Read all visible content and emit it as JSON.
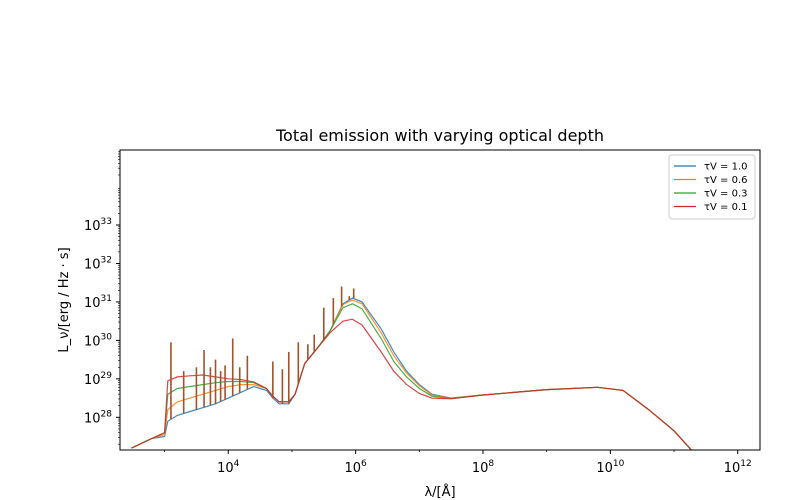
{
  "chart_data": {
    "type": "line",
    "title": "Total emission with varying optical depth",
    "xlabel": "λ/[Å]",
    "ylabel": "L_ν/[erg / Hz · s]",
    "xscale": "log",
    "yscale": "log",
    "xlim_log10": [
      2.3,
      12.35
    ],
    "ylim_log10": [
      27.15,
      34.95
    ],
    "x_ticks": [
      {
        "base": "10",
        "exp": "4",
        "log": 4
      },
      {
        "base": "10",
        "exp": "6",
        "log": 6
      },
      {
        "base": "10",
        "exp": "8",
        "log": 8
      },
      {
        "base": "10",
        "exp": "10",
        "log": 10
      },
      {
        "base": "10",
        "exp": "12",
        "log": 12
      }
    ],
    "y_ticks": [
      {
        "base": "10",
        "exp": "28",
        "log": 28
      },
      {
        "base": "10",
        "exp": "29",
        "log": 29
      },
      {
        "base": "10",
        "exp": "30",
        "log": 30
      },
      {
        "base": "10",
        "exp": "31",
        "log": 31
      },
      {
        "base": "10",
        "exp": "32",
        "log": 32
      },
      {
        "base": "10",
        "exp": "33",
        "log": 33
      }
    ],
    "legend_position": "upper right",
    "grid": false,
    "series": [
      {
        "name": "τ_V = 1.0",
        "legend": "τV = 1.0",
        "color": "#1f77b4",
        "points": [
          [
            2.48,
            27.2
          ],
          [
            2.8,
            27.45
          ],
          [
            3.0,
            27.5
          ],
          [
            3.05,
            27.9
          ],
          [
            3.2,
            28.05
          ],
          [
            3.4,
            28.15
          ],
          [
            3.6,
            28.25
          ],
          [
            3.8,
            28.35
          ],
          [
            4.0,
            28.5
          ],
          [
            4.2,
            28.65
          ],
          [
            4.4,
            28.8
          ],
          [
            4.6,
            28.7
          ],
          [
            4.7,
            28.5
          ],
          [
            4.8,
            28.35
          ],
          [
            4.95,
            28.35
          ],
          [
            5.05,
            28.6
          ],
          [
            5.2,
            29.4
          ],
          [
            5.4,
            29.8
          ],
          [
            5.6,
            30.25
          ],
          [
            5.8,
            30.95
          ],
          [
            5.95,
            31.1
          ],
          [
            6.1,
            31.0
          ],
          [
            6.4,
            30.3
          ],
          [
            6.6,
            29.7
          ],
          [
            6.8,
            29.2
          ],
          [
            7.0,
            28.85
          ],
          [
            7.2,
            28.6
          ],
          [
            7.5,
            28.5
          ],
          [
            8.0,
            28.58
          ],
          [
            9.0,
            28.72
          ],
          [
            9.8,
            28.78
          ],
          [
            10.2,
            28.7
          ],
          [
            10.6,
            28.2
          ],
          [
            11.0,
            27.65
          ],
          [
            11.3,
            27.1
          ]
        ]
      },
      {
        "name": "τ_V = 0.6",
        "legend": "τV = 0.6",
        "color": "#ff7f0e",
        "points": [
          [
            2.48,
            27.2
          ],
          [
            2.8,
            27.45
          ],
          [
            3.0,
            27.55
          ],
          [
            3.05,
            28.2
          ],
          [
            3.2,
            28.4
          ],
          [
            3.4,
            28.5
          ],
          [
            3.6,
            28.6
          ],
          [
            3.8,
            28.7
          ],
          [
            4.0,
            28.8
          ],
          [
            4.2,
            28.85
          ],
          [
            4.4,
            28.85
          ],
          [
            4.6,
            28.75
          ],
          [
            4.7,
            28.55
          ],
          [
            4.8,
            28.4
          ],
          [
            4.95,
            28.4
          ],
          [
            5.05,
            28.6
          ],
          [
            5.2,
            29.4
          ],
          [
            5.4,
            29.8
          ],
          [
            5.6,
            30.25
          ],
          [
            5.8,
            30.93
          ],
          [
            5.95,
            31.05
          ],
          [
            6.1,
            30.95
          ],
          [
            6.4,
            30.2
          ],
          [
            6.6,
            29.6
          ],
          [
            6.8,
            29.15
          ],
          [
            7.0,
            28.82
          ],
          [
            7.2,
            28.58
          ],
          [
            7.5,
            28.5
          ],
          [
            8.0,
            28.58
          ],
          [
            9.0,
            28.72
          ],
          [
            9.8,
            28.78
          ],
          [
            10.2,
            28.7
          ],
          [
            10.6,
            28.2
          ],
          [
            11.0,
            27.65
          ],
          [
            11.3,
            27.1
          ]
        ]
      },
      {
        "name": "τ_V = 0.3",
        "legend": "τV = 0.3",
        "color": "#2ca02c",
        "points": [
          [
            2.48,
            27.2
          ],
          [
            2.8,
            27.45
          ],
          [
            3.0,
            27.6
          ],
          [
            3.05,
            28.6
          ],
          [
            3.2,
            28.75
          ],
          [
            3.4,
            28.8
          ],
          [
            3.6,
            28.85
          ],
          [
            3.8,
            28.9
          ],
          [
            4.0,
            28.93
          ],
          [
            4.2,
            28.93
          ],
          [
            4.4,
            28.9
          ],
          [
            4.6,
            28.75
          ],
          [
            4.7,
            28.55
          ],
          [
            4.8,
            28.4
          ],
          [
            4.95,
            28.4
          ],
          [
            5.05,
            28.6
          ],
          [
            5.2,
            29.4
          ],
          [
            5.4,
            29.8
          ],
          [
            5.6,
            30.25
          ],
          [
            5.8,
            30.85
          ],
          [
            5.95,
            30.95
          ],
          [
            6.1,
            30.82
          ],
          [
            6.4,
            30.05
          ],
          [
            6.6,
            29.45
          ],
          [
            6.8,
            29.05
          ],
          [
            7.0,
            28.75
          ],
          [
            7.2,
            28.55
          ],
          [
            7.5,
            28.49
          ],
          [
            8.0,
            28.58
          ],
          [
            9.0,
            28.72
          ],
          [
            9.8,
            28.78
          ],
          [
            10.2,
            28.7
          ],
          [
            10.6,
            28.2
          ],
          [
            11.0,
            27.65
          ],
          [
            11.3,
            27.1
          ]
        ]
      },
      {
        "name": "τ_V = 0.1",
        "legend": "τV = 0.1",
        "color": "#d62728",
        "points": [
          [
            2.48,
            27.2
          ],
          [
            2.8,
            27.45
          ],
          [
            3.0,
            27.6
          ],
          [
            3.05,
            28.95
          ],
          [
            3.2,
            29.05
          ],
          [
            3.4,
            29.08
          ],
          [
            3.6,
            29.1
          ],
          [
            3.8,
            29.05
          ],
          [
            4.0,
            29.0
          ],
          [
            4.2,
            28.98
          ],
          [
            4.4,
            28.92
          ],
          [
            4.6,
            28.75
          ],
          [
            4.7,
            28.55
          ],
          [
            4.8,
            28.4
          ],
          [
            4.95,
            28.4
          ],
          [
            5.05,
            28.6
          ],
          [
            5.2,
            29.4
          ],
          [
            5.4,
            29.8
          ],
          [
            5.6,
            30.2
          ],
          [
            5.8,
            30.5
          ],
          [
            5.95,
            30.55
          ],
          [
            6.1,
            30.4
          ],
          [
            6.4,
            29.7
          ],
          [
            6.6,
            29.2
          ],
          [
            6.8,
            28.85
          ],
          [
            7.0,
            28.62
          ],
          [
            7.2,
            28.5
          ],
          [
            7.5,
            28.48
          ],
          [
            8.0,
            28.58
          ],
          [
            9.0,
            28.72
          ],
          [
            9.8,
            28.78
          ],
          [
            10.2,
            28.7
          ],
          [
            10.6,
            28.2
          ],
          [
            11.0,
            27.65
          ],
          [
            11.3,
            27.1
          ]
        ]
      }
    ],
    "emission_lines": [
      {
        "x": 3.1,
        "peak": 29.95
      },
      {
        "x": 3.3,
        "peak": 29.2
      },
      {
        "x": 3.5,
        "peak": 29.3
      },
      {
        "x": 3.62,
        "peak": 29.75
      },
      {
        "x": 3.72,
        "peak": 29.3
      },
      {
        "x": 3.8,
        "peak": 29.5
      },
      {
        "x": 3.88,
        "peak": 29.2
      },
      {
        "x": 3.95,
        "peak": 29.35
      },
      {
        "x": 4.07,
        "peak": 30.05
      },
      {
        "x": 4.18,
        "peak": 29.3
      },
      {
        "x": 4.3,
        "peak": 29.6
      },
      {
        "x": 4.7,
        "peak": 29.45
      },
      {
        "x": 4.85,
        "peak": 29.25
      },
      {
        "x": 4.95,
        "peak": 29.7
      },
      {
        "x": 5.1,
        "peak": 29.95
      },
      {
        "x": 5.25,
        "peak": 29.9
      },
      {
        "x": 5.35,
        "peak": 30.15
      },
      {
        "x": 5.5,
        "peak": 30.85
      },
      {
        "x": 5.65,
        "peak": 31.1
      },
      {
        "x": 5.78,
        "peak": 31.4
      },
      {
        "x": 5.9,
        "peak": 31.15
      },
      {
        "x": 5.97,
        "peak": 31.35
      }
    ]
  }
}
